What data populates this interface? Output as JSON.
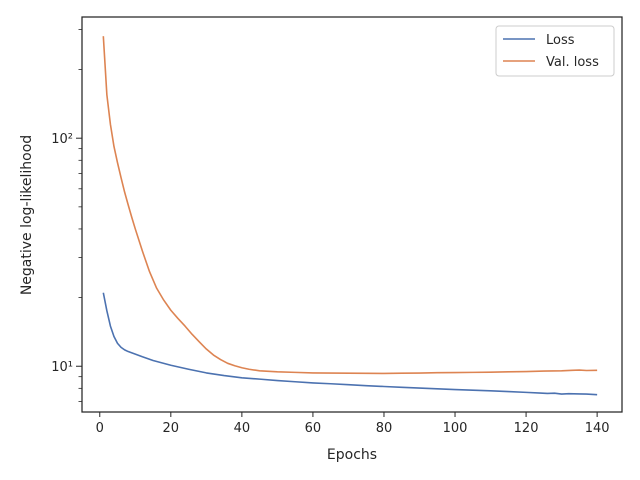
{
  "chart_data": {
    "type": "line",
    "title": "",
    "xlabel": "Epochs",
    "ylabel": "Negative log-likelihood",
    "xlim": [
      -5,
      147
    ],
    "ylim": [
      6.3,
      340
    ],
    "yscale": "log",
    "grid": false,
    "legend_position": "top-right",
    "x_ticks": [
      0,
      20,
      40,
      60,
      80,
      100,
      120,
      140
    ],
    "x_tick_labels": [
      "0",
      "20",
      "40",
      "60",
      "80",
      "100",
      "120",
      "140"
    ],
    "y_ticks": [
      10,
      100
    ],
    "y_tick_labels": [
      "10¹",
      "10²"
    ],
    "series": [
      {
        "name": "Loss",
        "color": "#4c72b0",
        "points": [
          [
            1,
            21.0
          ],
          [
            2,
            17.5
          ],
          [
            3,
            15.0
          ],
          [
            4,
            13.5
          ],
          [
            5,
            12.6
          ],
          [
            6,
            12.1
          ],
          [
            7,
            11.8
          ],
          [
            8,
            11.6
          ],
          [
            10,
            11.3
          ],
          [
            12,
            11.0
          ],
          [
            15,
            10.6
          ],
          [
            20,
            10.1
          ],
          [
            25,
            9.7
          ],
          [
            30,
            9.35
          ],
          [
            35,
            9.1
          ],
          [
            40,
            8.9
          ],
          [
            45,
            8.78
          ],
          [
            50,
            8.65
          ],
          [
            55,
            8.55
          ],
          [
            60,
            8.45
          ],
          [
            65,
            8.38
          ],
          [
            70,
            8.3
          ],
          [
            75,
            8.22
          ],
          [
            80,
            8.15
          ],
          [
            85,
            8.08
          ],
          [
            90,
            8.02
          ],
          [
            95,
            7.96
          ],
          [
            100,
            7.9
          ],
          [
            105,
            7.85
          ],
          [
            110,
            7.8
          ],
          [
            115,
            7.74
          ],
          [
            120,
            7.68
          ],
          [
            124,
            7.63
          ],
          [
            126,
            7.6
          ],
          [
            128,
            7.62
          ],
          [
            130,
            7.55
          ],
          [
            132,
            7.58
          ],
          [
            135,
            7.56
          ],
          [
            137,
            7.55
          ],
          [
            140,
            7.5
          ]
        ]
      },
      {
        "name": "Val. loss",
        "color": "#dd8452",
        "points": [
          [
            1,
            280
          ],
          [
            2,
            155
          ],
          [
            3,
            115
          ],
          [
            4,
            92
          ],
          [
            5,
            78
          ],
          [
            6,
            67
          ],
          [
            7,
            58
          ],
          [
            8,
            51
          ],
          [
            9,
            45
          ],
          [
            10,
            40
          ],
          [
            12,
            32
          ],
          [
            14,
            26
          ],
          [
            16,
            22
          ],
          [
            18,
            19.5
          ],
          [
            20,
            17.6
          ],
          [
            22,
            16.2
          ],
          [
            24,
            15.0
          ],
          [
            26,
            13.8
          ],
          [
            28,
            12.8
          ],
          [
            30,
            11.9
          ],
          [
            32,
            11.2
          ],
          [
            34,
            10.7
          ],
          [
            36,
            10.3
          ],
          [
            38,
            10.05
          ],
          [
            40,
            9.85
          ],
          [
            42,
            9.7
          ],
          [
            45,
            9.55
          ],
          [
            50,
            9.45
          ],
          [
            55,
            9.4
          ],
          [
            60,
            9.35
          ],
          [
            65,
            9.33
          ],
          [
            70,
            9.32
          ],
          [
            75,
            9.31
          ],
          [
            80,
            9.3
          ],
          [
            85,
            9.32
          ],
          [
            90,
            9.33
          ],
          [
            95,
            9.37
          ],
          [
            100,
            9.38
          ],
          [
            105,
            9.4
          ],
          [
            110,
            9.42
          ],
          [
            115,
            9.45
          ],
          [
            120,
            9.48
          ],
          [
            125,
            9.52
          ],
          [
            130,
            9.55
          ],
          [
            133,
            9.6
          ],
          [
            135,
            9.62
          ],
          [
            137,
            9.58
          ],
          [
            140,
            9.6
          ]
        ]
      }
    ]
  }
}
